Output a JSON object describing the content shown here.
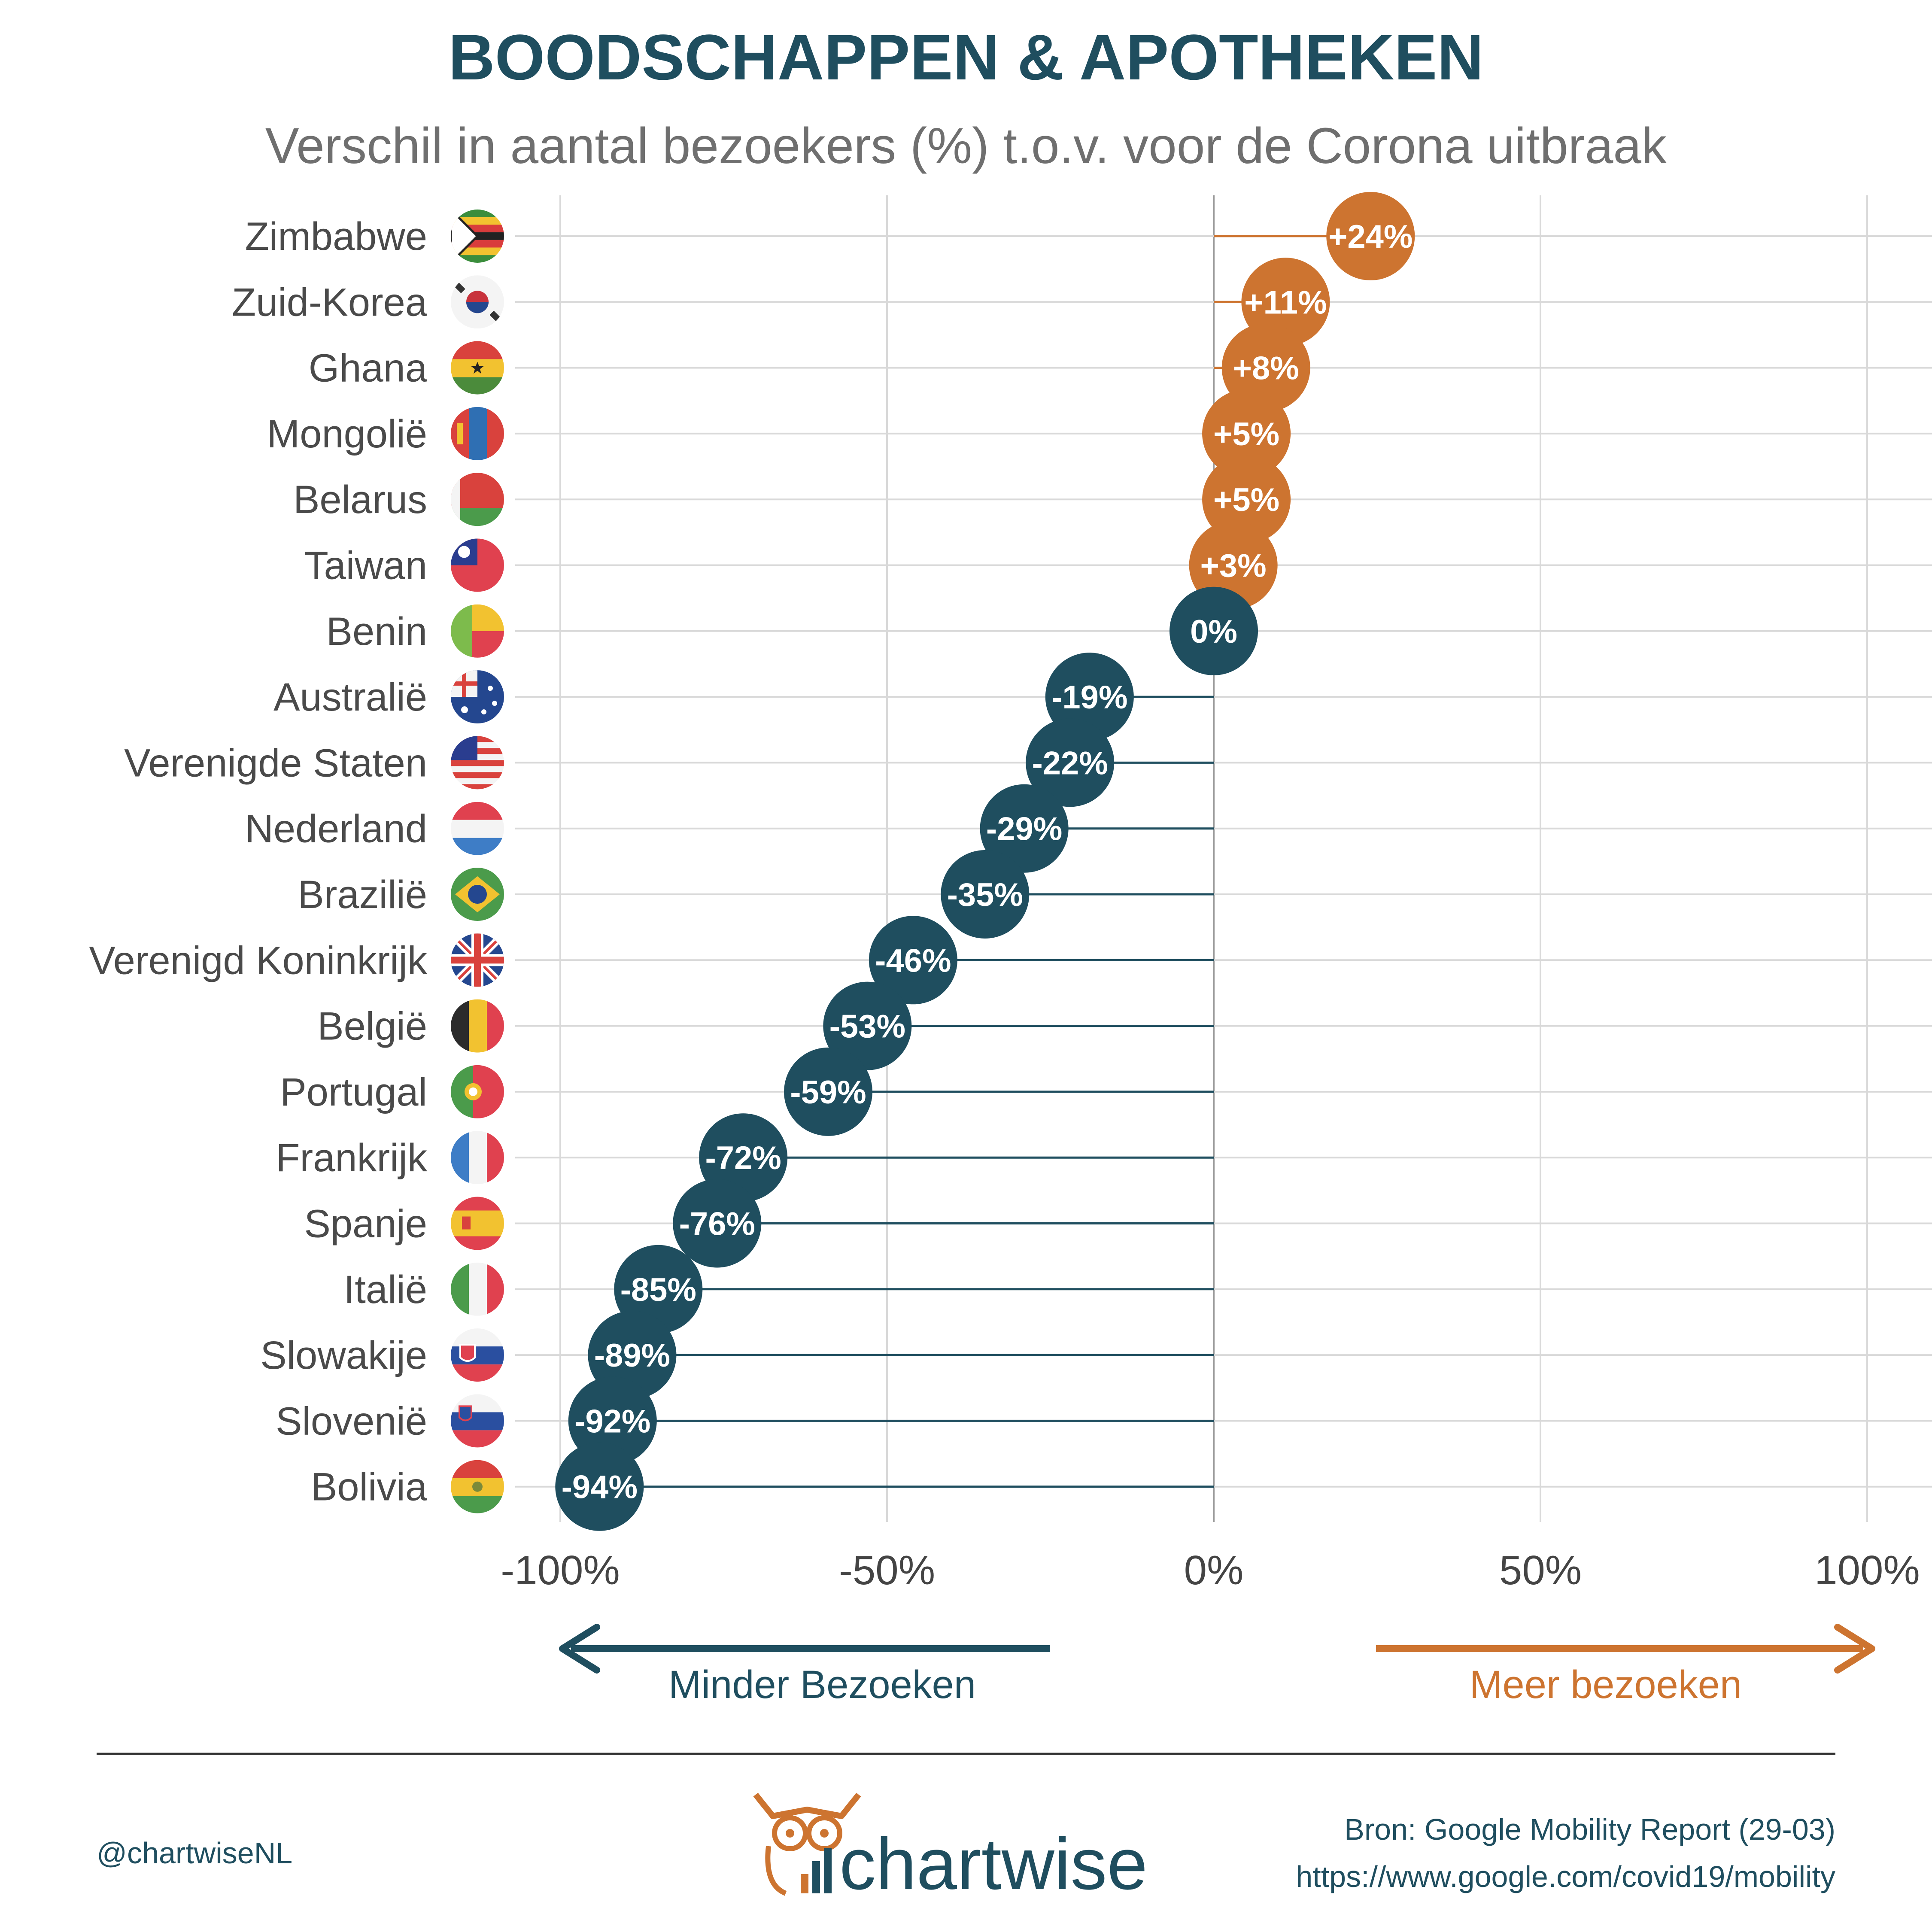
{
  "title": "BOODSCHAPPEN & APOTHEKEN",
  "subtitle": "Verschil in aantal bezoekers (%) t.o.v. voor de Corona uitbraak",
  "colors": {
    "positive": "#cd7430",
    "negative": "#1f4e5f",
    "title": "#1f4e5f",
    "grid": "#d9d9d9"
  },
  "arrows": {
    "less_label": "Minder Bezoeken",
    "more_label": "Meer bezoeken"
  },
  "footer": {
    "handle": "@chartwiseNL",
    "logo_text": "chartwise",
    "source_line1": "Bron: Google Mobility Report (29-03)",
    "source_line2": "https://www.google.com/covid19/mobility"
  },
  "chart_data": {
    "type": "dot",
    "categories": [
      "Zimbabwe",
      "Zuid-Korea",
      "Ghana",
      "Mongolië",
      "Belarus",
      "Taiwan",
      "Benin",
      "Australië",
      "Verenigde Staten",
      "Nederland",
      "Brazilië",
      "Verenigd Koninkrijk",
      "België",
      "Portugal",
      "Frankrijk",
      "Spanje",
      "Italië",
      "Slowakije",
      "Slovenië",
      "Bolivia"
    ],
    "values": [
      24,
      11,
      8,
      5,
      5,
      3,
      0,
      -19,
      -22,
      -29,
      -35,
      -46,
      -53,
      -59,
      -72,
      -76,
      -85,
      -89,
      -92,
      -94
    ],
    "labels": [
      "+24%",
      "+11%",
      "+8%",
      "+5%",
      "+5%",
      "+3%",
      "0%",
      "-19%",
      "-22%",
      "-29%",
      "-35%",
      "-46%",
      "-53%",
      "-59%",
      "-72%",
      "-76%",
      "-85%",
      "-89%",
      "-92%",
      "-94%"
    ],
    "flags": [
      "zimbabwe-flag",
      "south-korea-flag",
      "ghana-flag",
      "mongolia-flag",
      "belarus-flag",
      "taiwan-flag",
      "benin-flag",
      "australia-flag",
      "usa-flag",
      "netherlands-flag",
      "brazil-flag",
      "uk-flag",
      "belgium-flag",
      "portugal-flag",
      "france-flag",
      "spain-flag",
      "italy-flag",
      "slovakia-flag",
      "slovenia-flag",
      "bolivia-flag"
    ],
    "x_ticks": [
      "-100%",
      "-50%",
      "0%",
      "50%",
      "100%"
    ],
    "x_tick_values": [
      -100,
      -50,
      0,
      50,
      100
    ],
    "xlim": [
      -100,
      100
    ],
    "grid": true
  }
}
